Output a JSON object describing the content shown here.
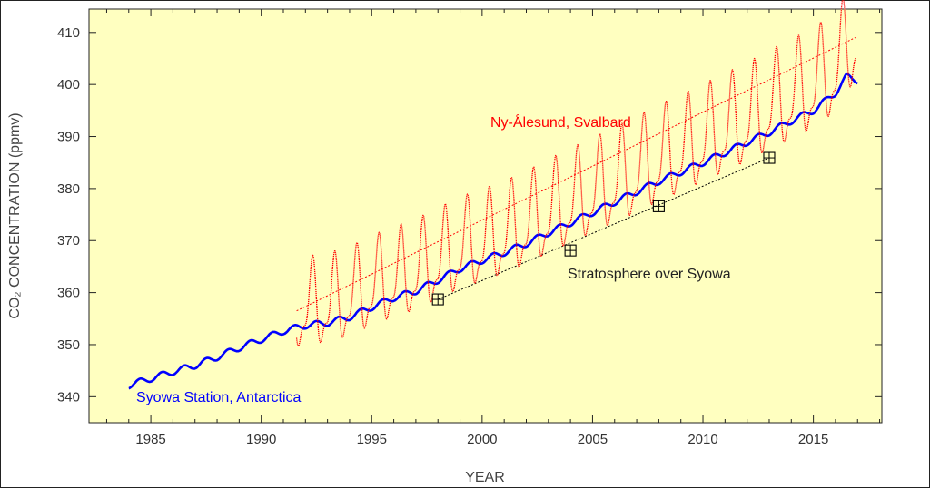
{
  "chart_data": {
    "type": "line",
    "xlabel": "YEAR",
    "ylabel": "CO₂ CONCENTRATION (ppmv)",
    "xlim": [
      1982.2,
      2018.1
    ],
    "ylim": [
      335.0,
      414.5
    ],
    "x_ticks": [
      1985,
      1990,
      1995,
      2000,
      2005,
      2010,
      2015
    ],
    "y_ticks": [
      340,
      350,
      360,
      370,
      380,
      390,
      400,
      410
    ],
    "grid": false,
    "background": "#ffffc0",
    "series": [
      {
        "name": "Syowa Station, Antarctica",
        "color": "#0000ff",
        "style": "solid-thick",
        "x": [
          1984.0,
          1985.0,
          1986.0,
          1987.0,
          1988.0,
          1989.0,
          1990.0,
          1991.0,
          1992.0,
          1993.0,
          1994.0,
          1995.0,
          1996.0,
          1997.0,
          1998.0,
          1999.0,
          2000.0,
          2001.0,
          2002.0,
          2003.0,
          2004.0,
          2005.0,
          2006.0,
          2007.0,
          2008.0,
          2009.0,
          2010.0,
          2011.0,
          2012.0,
          2013.0,
          2014.0,
          2015.0,
          2016.0,
          2016.5,
          2017.0
        ],
        "values": [
          342.2,
          343.5,
          344.8,
          346.0,
          347.6,
          349.4,
          351.0,
          352.6,
          353.7,
          354.2,
          355.3,
          357.2,
          359.0,
          360.3,
          362.4,
          364.6,
          366.2,
          367.7,
          369.4,
          371.5,
          373.4,
          375.4,
          377.4,
          379.4,
          381.4,
          383.2,
          385.0,
          386.9,
          388.9,
          390.8,
          393.0,
          395.0,
          398.4,
          401.5,
          400.8
        ],
        "seasonal_amplitude": 0.6
      },
      {
        "name": "Ny-Ålesund, Svalbard",
        "color": "#ff0000",
        "style": "dots-seasonal",
        "x": [
          1991.6,
          1992.0,
          1993.0,
          1994.0,
          1995.0,
          1996.0,
          1997.0,
          1998.0,
          1999.0,
          2000.0,
          2001.0,
          2002.0,
          2003.0,
          2004.0,
          2005.0,
          2006.0,
          2007.0,
          2008.0,
          2009.0,
          2010.0,
          2011.0,
          2012.0,
          2013.0,
          2014.0,
          2015.0,
          2016.0,
          2016.9
        ],
        "values": [
          356.5,
          357.0,
          357.5,
          358.8,
          360.8,
          362.5,
          363.8,
          366.0,
          368.0,
          369.5,
          371.0,
          372.8,
          375.0,
          377.0,
          379.0,
          381.0,
          383.0,
          385.2,
          387.0,
          389.0,
          391.0,
          393.0,
          395.3,
          397.4,
          399.5,
          402.8,
          409.0
        ],
        "seasonal_amplitude": 8.5
      },
      {
        "name": "Stratosphere over Syowa",
        "color": "#000000",
        "style": "boxed-points",
        "x": [
          1998.0,
          2004.0,
          2008.0,
          2013.0
        ],
        "values": [
          358.7,
          368.1,
          376.6,
          385.9
        ]
      }
    ],
    "trend_lines": [
      {
        "color": "#ff0000",
        "x": [
          1991.6,
          2016.9
        ],
        "values": [
          356.5,
          409.0
        ]
      },
      {
        "color": "#000000",
        "x": [
          1998.0,
          2013.0
        ],
        "values": [
          358.7,
          385.9
        ]
      }
    ],
    "annotations": [
      {
        "text": "Ny-Ålesund, Svalbard",
        "color": "#ff0000"
      },
      {
        "text": "Stratosphere over Syowa",
        "color": "#222222"
      },
      {
        "text": "Syowa Station, Antarctica",
        "color": "#0000ff"
      }
    ]
  }
}
